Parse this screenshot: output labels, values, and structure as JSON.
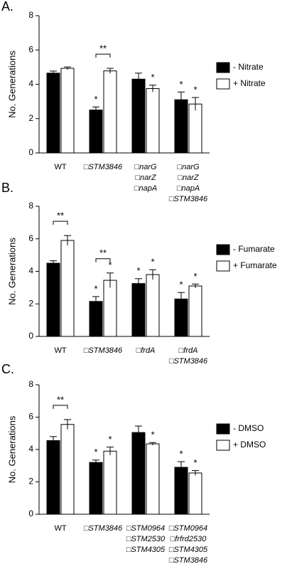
{
  "chart_data": [
    {
      "type": "bar",
      "title": "A.",
      "ylabel": "No. Generations",
      "categories": [
        [
          "WT"
        ],
        [
          "□STM3846"
        ],
        [
          "□narG",
          "□narZ",
          "□napA"
        ],
        [
          "□narG",
          "□narZ",
          "□napA",
          "□STM3846"
        ]
      ],
      "series": [
        {
          "name": "- Nitrate",
          "color": "#000000",
          "values": [
            4.65,
            2.5,
            4.3,
            3.1
          ],
          "errors": [
            0.12,
            0.18,
            0.35,
            0.45
          ],
          "stars": [
            null,
            "*",
            null,
            "*"
          ]
        },
        {
          "name": "+ Nitrate",
          "color": "#ffffff",
          "values": [
            4.93,
            4.78,
            3.75,
            2.85
          ],
          "errors": [
            0.08,
            0.15,
            0.2,
            0.38
          ],
          "stars": [
            null,
            null,
            "*",
            "*"
          ]
        }
      ],
      "brackets": [
        null,
        "**",
        null,
        null
      ],
      "ylim": [
        0,
        8
      ],
      "yticks": [
        0,
        2,
        4,
        6,
        8
      ],
      "legend": "right"
    },
    {
      "type": "bar",
      "title": "B.",
      "ylabel": "No. Generations",
      "categories": [
        [
          "WT"
        ],
        [
          "□STM3846"
        ],
        [
          "□frdA"
        ],
        [
          "□frdA",
          "□STM3846"
        ]
      ],
      "series": [
        {
          "name": "- Fumarate",
          "color": "#000000",
          "values": [
            4.5,
            2.15,
            3.25,
            2.3
          ],
          "errors": [
            0.15,
            0.3,
            0.3,
            0.4
          ],
          "stars": [
            null,
            "*",
            "*",
            "*"
          ]
        },
        {
          "name": "+ Fumarate",
          "color": "#ffffff",
          "values": [
            5.9,
            3.45,
            3.8,
            3.1
          ],
          "errors": [
            0.3,
            0.45,
            0.3,
            0.12
          ],
          "stars": [
            null,
            "*",
            "*",
            "*"
          ]
        }
      ],
      "brackets": [
        "**",
        "**",
        null,
        null
      ],
      "ylim": [
        0,
        8
      ],
      "yticks": [
        0,
        2,
        4,
        6,
        8
      ],
      "legend": "right"
    },
    {
      "type": "bar",
      "title": "C.",
      "ylabel": "No. Generations",
      "categories": [
        [
          "WT"
        ],
        [
          "□STM3846"
        ],
        [
          "□STM0964",
          "□STM2530",
          "□STM4305"
        ],
        [
          "□STM0964",
          "□frfrd2530",
          "□STM4305",
          "□STM3846"
        ]
      ],
      "series": [
        {
          "name": "- DMSO",
          "color": "#000000",
          "values": [
            4.55,
            3.2,
            5.05,
            2.9
          ],
          "errors": [
            0.25,
            0.15,
            0.4,
            0.35
          ],
          "stars": [
            null,
            "*",
            null,
            "*"
          ]
        },
        {
          "name": "+ DMSO",
          "color": "#ffffff",
          "values": [
            5.55,
            3.9,
            4.35,
            2.55
          ],
          "errors": [
            0.3,
            0.25,
            0.08,
            0.15
          ],
          "stars": [
            null,
            "*",
            "*",
            "*"
          ]
        }
      ],
      "brackets": [
        "**",
        null,
        null,
        null
      ],
      "ylim": [
        0,
        8
      ],
      "yticks": [
        0,
        2,
        4,
        6,
        8
      ],
      "legend": "right"
    }
  ]
}
